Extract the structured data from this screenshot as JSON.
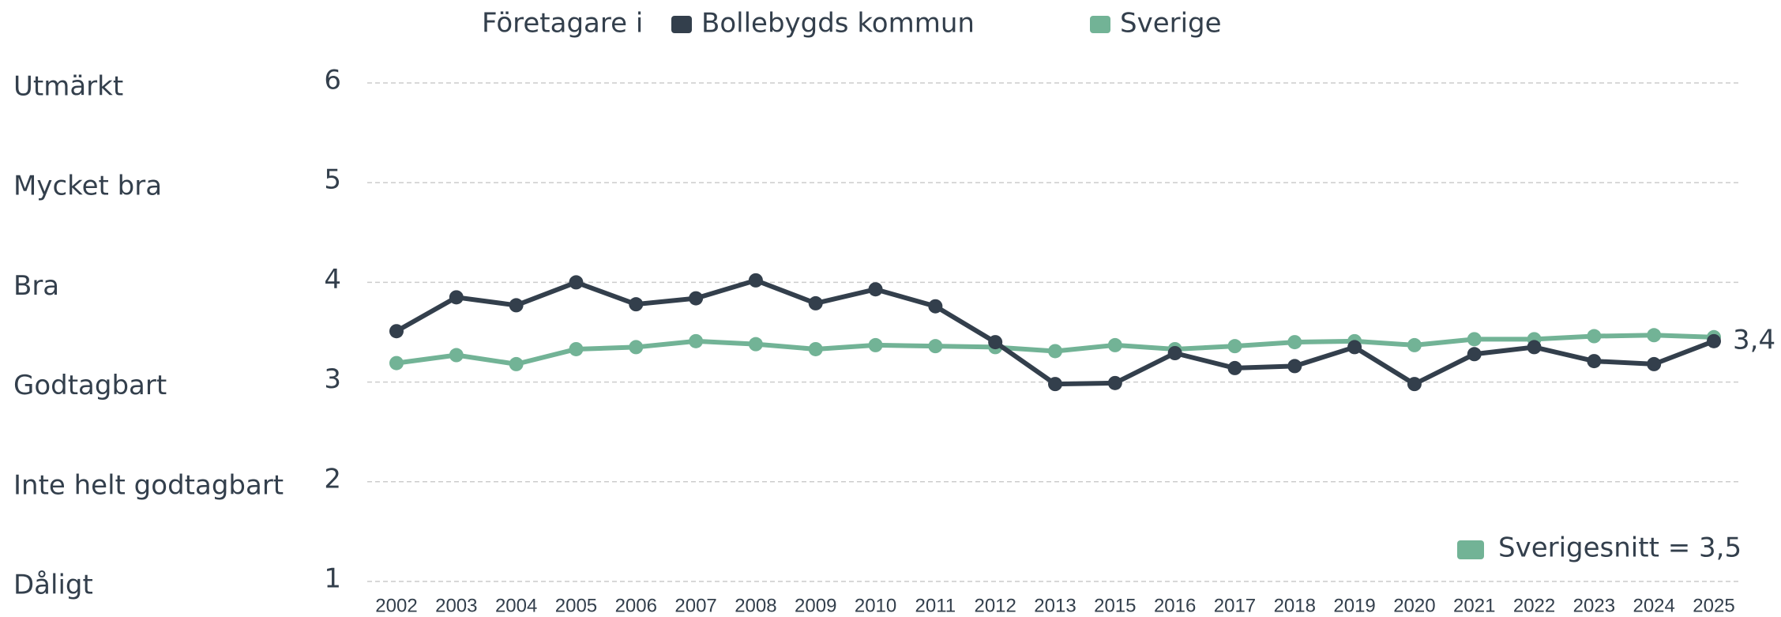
{
  "chart_data": {
    "type": "line",
    "legend_prefix": "Företagare i",
    "categories": [
      "2002",
      "2003",
      "2004",
      "2005",
      "2006",
      "2007",
      "2008",
      "2009",
      "2010",
      "2011",
      "2012",
      "2013",
      "2015",
      "2016",
      "2017",
      "2018",
      "2019",
      "2020",
      "2021",
      "2022",
      "2023",
      "2024",
      "2025"
    ],
    "series": [
      {
        "name": "Bollebygds kommun",
        "color": "#333f4c",
        "values": [
          3.51,
          3.85,
          3.77,
          4.0,
          3.78,
          3.84,
          4.02,
          3.79,
          3.93,
          3.76,
          3.4,
          2.98,
          2.99,
          3.29,
          3.14,
          3.16,
          3.35,
          2.98,
          3.28,
          3.35,
          3.21,
          3.18,
          3.41
        ],
        "value_labels": [
          null,
          null,
          null,
          null,
          null,
          null,
          null,
          null,
          null,
          null,
          null,
          null,
          null,
          null,
          null,
          null,
          null,
          null,
          null,
          null,
          null,
          null,
          "3,4"
        ]
      },
      {
        "name": "Sverige",
        "color": "#72b396",
        "values": [
          3.19,
          3.27,
          3.18,
          3.33,
          3.35,
          3.41,
          3.38,
          3.33,
          3.37,
          3.36,
          3.35,
          3.31,
          3.37,
          3.33,
          3.36,
          3.4,
          3.41,
          3.37,
          3.43,
          3.43,
          3.46,
          3.47,
          3.45
        ]
      }
    ],
    "ylim": [
      1,
      6
    ],
    "yticks": [
      1,
      2,
      3,
      4,
      5,
      6
    ],
    "y_category_labels": [
      "Dåligt",
      "Inte helt godtagbart",
      "Godtagbart",
      "Bra",
      "Mycket bra",
      "Utmärkt"
    ],
    "grid": true,
    "annotation": {
      "text": "Sverigesnitt = 3,5",
      "color": "#72b396"
    }
  }
}
